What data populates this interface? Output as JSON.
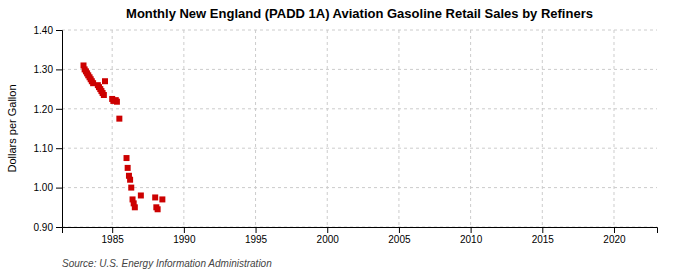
{
  "chart_data": {
    "type": "scatter",
    "title": "Monthly New England (PADD 1A) Aviation Gasoline Retail Sales by Refiners",
    "ylabel": "Dollars per Gallon",
    "source": "Source: U.S. Energy Information Administration",
    "x": [
      1983.0,
      1983.08,
      1983.17,
      1983.25,
      1983.33,
      1983.42,
      1983.5,
      1983.58,
      1983.67,
      1984.0,
      1984.08,
      1984.17,
      1984.25,
      1984.33,
      1984.42,
      1984.5,
      1985.0,
      1985.08,
      1985.25,
      1985.33,
      1985.5,
      1986.0,
      1986.08,
      1986.17,
      1986.25,
      1986.33,
      1986.42,
      1986.5,
      1986.58,
      1987.0,
      1988.0,
      1988.08,
      1988.17,
      1988.5
    ],
    "values": [
      1.31,
      1.3,
      1.295,
      1.29,
      1.285,
      1.28,
      1.275,
      1.27,
      1.265,
      1.26,
      1.255,
      1.25,
      1.245,
      1.24,
      1.235,
      1.27,
      1.225,
      1.22,
      1.222,
      1.218,
      1.175,
      1.075,
      1.05,
      1.03,
      1.02,
      1.0,
      0.97,
      0.96,
      0.95,
      0.98,
      0.975,
      0.95,
      0.945,
      0.97
    ],
    "color": "#cc0000",
    "marker": "square",
    "xlim": [
      1981.5,
      2023
    ],
    "ylim": [
      0.9,
      1.4
    ],
    "xticks": [
      1985,
      1990,
      1995,
      2000,
      2005,
      2010,
      2015,
      2020
    ],
    "yticks": [
      {
        "value": 0.9,
        "label": "0.90"
      },
      {
        "value": 1.0,
        "label": "1.00"
      },
      {
        "value": 1.1,
        "label": "1.10"
      },
      {
        "value": 1.2,
        "label": "1.20"
      },
      {
        "value": 1.3,
        "label": "1.30"
      },
      {
        "value": 1.4,
        "label": "1.40"
      }
    ],
    "grid": true
  }
}
